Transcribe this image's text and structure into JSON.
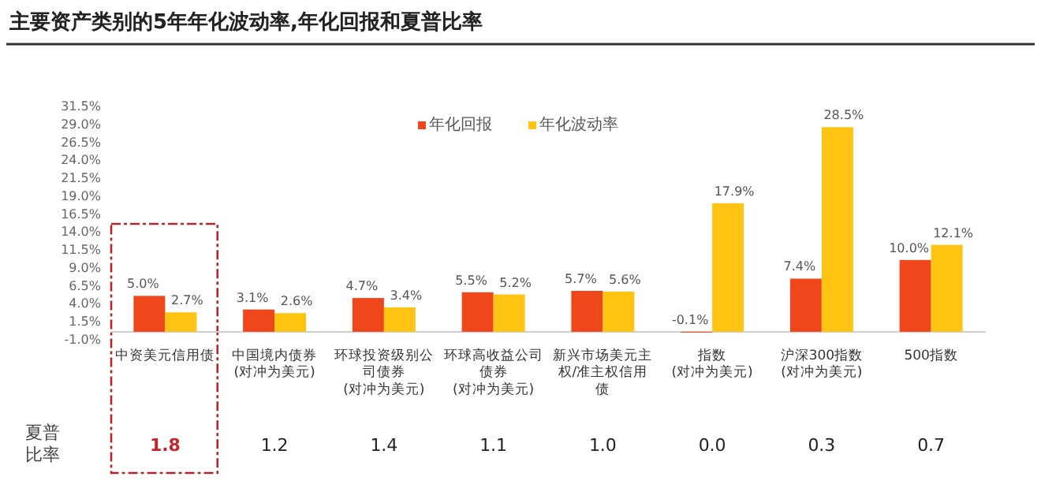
{
  "chart_data": {
    "type": "bar",
    "title": "主要资产类别的5年年化波动率,年化回报和夏普比率",
    "categories": [
      "中资美元信用债",
      "中国境内债券(对冲为美元)",
      "环球投资级别公司债券(对冲为美元)",
      "环球高收益公司债券(对冲为美元)",
      "新兴市场美元主权/准主权信用债",
      "指数(对冲为美元)",
      "沪深300指数(对冲为美元)",
      "500指数"
    ],
    "series": [
      {
        "name": "年化回报",
        "color": "#f0461c",
        "values": [
          5.0,
          3.1,
          4.7,
          5.5,
          5.7,
          -0.1,
          7.4,
          10.0
        ],
        "value_labels": [
          "5.0%",
          "3.1%",
          "4.7%",
          "5.5%",
          "5.7%",
          "-0.1%",
          "7.4%",
          "10.0%"
        ]
      },
      {
        "name": "年化波动率",
        "color": "#ffc412",
        "values": [
          2.7,
          2.6,
          3.4,
          5.2,
          5.6,
          17.9,
          28.5,
          12.1
        ],
        "value_labels": [
          "2.7%",
          "2.6%",
          "3.4%",
          "5.2%",
          "5.6%",
          "17.9%",
          "28.5%",
          "12.1%"
        ]
      }
    ],
    "ylim": [
      -1,
      31.5
    ],
    "yticks": [
      {
        "value": -1,
        "label": "-1.0%"
      },
      {
        "value": 1.5,
        "label": "1.5%"
      },
      {
        "value": 4,
        "label": "4.0%"
      },
      {
        "value": 6.5,
        "label": "6.5%"
      },
      {
        "value": 9,
        "label": "9.0%"
      },
      {
        "value": 11.5,
        "label": "11.5%"
      },
      {
        "value": 14,
        "label": "14.0%"
      },
      {
        "value": 16.5,
        "label": "16.5%"
      },
      {
        "value": 19,
        "label": "19.0%"
      },
      {
        "value": 21.5,
        "label": "21.5%"
      },
      {
        "value": 24,
        "label": "24.0%"
      },
      {
        "value": 26.5,
        "label": "26.5%"
      },
      {
        "value": 29,
        "label": "29.0%"
      },
      {
        "value": 31.5,
        "label": "31.5%"
      }
    ],
    "legend": "top",
    "annotations": [
      "夏普比率",
      "1.8",
      "1.2",
      "1.4",
      "1.1",
      "1.0",
      "0.0",
      "0.3",
      "0.7"
    ]
  }
}
